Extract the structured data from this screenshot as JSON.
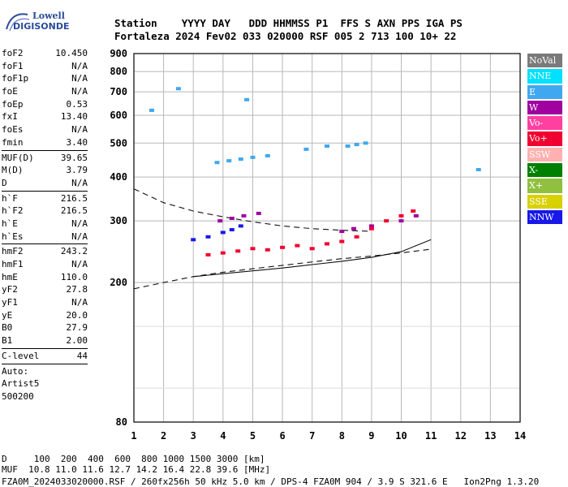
{
  "logo": {
    "line1": "Lowell",
    "line2": "DIGISONDE"
  },
  "header": {
    "row1": "Station    YYYY DAY   DDD HHMMSS P1  FFS S AXN PPS IGA PS",
    "row2": "Fortaleza 2024 Fev02 033 020000 RSF 005 2 713 100 10+ 22"
  },
  "params": {
    "group1": [
      [
        "foF2",
        "10.450"
      ],
      [
        "foF1",
        "N/A"
      ],
      [
        "foF1p",
        "N/A"
      ],
      [
        "foE",
        "N/A"
      ],
      [
        "foEp",
        "0.53"
      ],
      [
        "fxI",
        "13.40"
      ],
      [
        "foEs",
        "N/A"
      ],
      [
        "fmin",
        "3.40"
      ]
    ],
    "group2": [
      [
        "MUF(D)",
        "39.65"
      ],
      [
        "M(D)",
        "3.79"
      ],
      [
        "D",
        "N/A"
      ]
    ],
    "group3": [
      [
        "h`F",
        "216.5"
      ],
      [
        "h`F2",
        "216.5"
      ],
      [
        "h`E",
        "N/A"
      ],
      [
        "h`Es",
        "N/A"
      ]
    ],
    "group4": [
      [
        "hmF2",
        "243.2"
      ],
      [
        "hmF1",
        "N/A"
      ],
      [
        "hmE",
        "110.0"
      ],
      [
        "yF2",
        "27.8"
      ],
      [
        "yF1",
        "N/A"
      ],
      [
        "yE",
        "20.0"
      ],
      [
        "B0",
        "27.9"
      ],
      [
        "B1",
        "2.00"
      ]
    ],
    "clevel": [
      "C-level",
      "44"
    ],
    "auto": [
      "Auto:",
      "Artist5",
      "500200"
    ]
  },
  "legend": [
    {
      "label": "NoVal",
      "color": "#7a7a7a"
    },
    {
      "label": "NNE",
      "color": "#00e0ff"
    },
    {
      "label": "E",
      "color": "#40a8f0"
    },
    {
      "label": "W",
      "color": "#a000a0"
    },
    {
      "label": "Vo-",
      "color": "#ff40a0"
    },
    {
      "label": "Vo+",
      "color": "#f00030"
    },
    {
      "label": "SSW",
      "color": "#ffb0b0"
    },
    {
      "label": "X-",
      "color": "#008000"
    },
    {
      "label": "X+",
      "color": "#90c040"
    },
    {
      "label": "SSE",
      "color": "#d8d000"
    },
    {
      "label": "NNW",
      "color": "#1818e8"
    }
  ],
  "footer": {
    "line1": "D     100  200  400  600  800 1000 1500 3000 [km]",
    "line2": "MUF  10.8 11.0 11.6 12.7 14.2 16.4 22.8 39.6 [MHz]",
    "line3": "FZA0M_2024033020000.RSF / 260fx256h 50 kHz 5.0 km / DPS-4 FZA0M 904 / 3.9 S 321.6 E   Ion2Png 1.3.20"
  },
  "chart_data": {
    "type": "scatter",
    "title": "",
    "xlabel": "",
    "ylabel": "",
    "xlim": [
      1,
      14
    ],
    "ylim": [
      80,
      900
    ],
    "yscale": "log",
    "xticks": [
      1,
      2,
      3,
      4,
      5,
      6,
      7,
      8,
      9,
      10,
      11,
      12,
      13,
      14
    ],
    "yticks": [
      80,
      200,
      300,
      400,
      500,
      600,
      700,
      800,
      900
    ],
    "grid": true,
    "series": [
      {
        "name": "E",
        "color": "#40a8f0",
        "x": [
          1.6,
          2.5,
          4.8,
          3.8,
          4.2,
          4.6,
          5.0,
          5.5,
          6.8,
          7.5,
          8.2,
          8.5,
          8.8,
          12.6
        ],
        "y": [
          620,
          715,
          665,
          440,
          445,
          450,
          455,
          460,
          480,
          490,
          490,
          495,
          500,
          420
        ]
      },
      {
        "name": "NNW",
        "color": "#1818e8",
        "x": [
          3.0,
          3.5,
          4.0,
          4.3,
          4.6
        ],
        "y": [
          265,
          270,
          278,
          283,
          290
        ]
      },
      {
        "name": "W",
        "color": "#a000a0",
        "x": [
          3.9,
          4.3,
          4.7,
          5.2,
          8.0,
          8.4,
          9.0,
          10.0,
          10.5
        ],
        "y": [
          300,
          305,
          310,
          315,
          280,
          285,
          290,
          300,
          310
        ]
      },
      {
        "name": "Vo+",
        "color": "#f00030",
        "x": [
          3.5,
          4.0,
          4.5,
          5.0,
          5.5,
          6.0,
          6.5,
          7.0,
          7.5,
          8.0,
          8.5,
          9.0,
          9.5,
          10.0,
          10.4
        ],
        "y": [
          240,
          243,
          246,
          250,
          248,
          252,
          255,
          250,
          258,
          262,
          270,
          285,
          300,
          310,
          320
        ]
      }
    ],
    "curves": [
      {
        "kind": "dashed",
        "x": [
          1.0,
          2.0,
          3.0,
          4.0,
          5.0,
          6.0,
          7.0,
          8.0,
          9.0
        ],
        "y": [
          370,
          338,
          320,
          308,
          298,
          290,
          285,
          282,
          280
        ]
      },
      {
        "kind": "dashed",
        "x": [
          1.0,
          2.0,
          3.0,
          4.0,
          5.0,
          6.0,
          7.0,
          8.0,
          9.0,
          10.0,
          11.0
        ],
        "y": [
          192,
          200,
          208,
          214,
          219,
          224,
          229,
          234,
          238,
          243,
          249
        ]
      },
      {
        "kind": "solid",
        "x": [
          3.0,
          4.0,
          5.0,
          6.0,
          7.0,
          8.0,
          9.0,
          10.0,
          10.5,
          11.0
        ],
        "y": [
          208,
          212,
          216,
          220,
          225,
          230,
          236,
          245,
          255,
          265
        ]
      }
    ]
  }
}
